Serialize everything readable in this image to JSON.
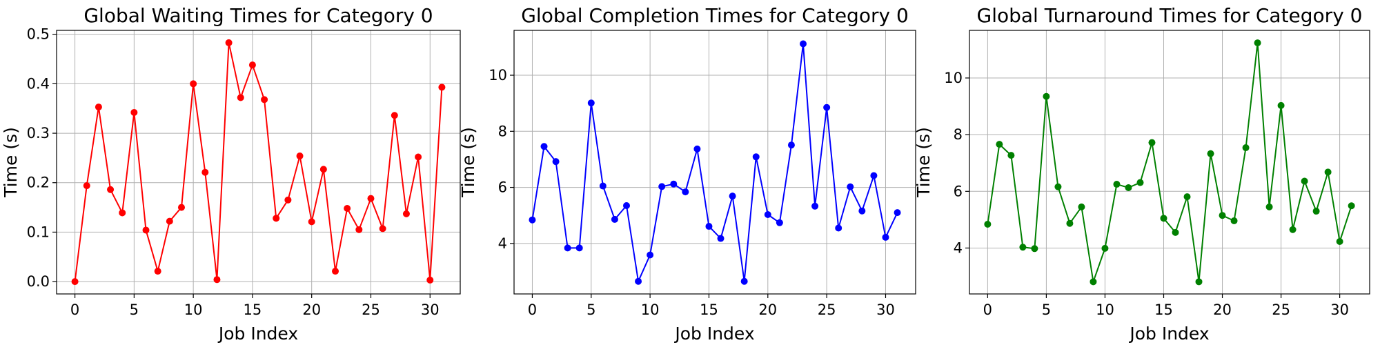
{
  "chart_data": [
    {
      "type": "line",
      "title": "Global Waiting Times for Category 0",
      "xlabel": "Job Index",
      "ylabel": "Time (s)",
      "color": "#ff0000",
      "marker": "circle",
      "grid": true,
      "xlim": [
        -1.55,
        32.55
      ],
      "ylim": [
        -0.025,
        0.508
      ],
      "xticks": [
        0,
        5,
        10,
        15,
        20,
        25,
        30
      ],
      "yticks": [
        0.0,
        0.1,
        0.2,
        0.3,
        0.4,
        0.5
      ],
      "ytick_labels": [
        "0.0",
        "0.1",
        "0.2",
        "0.3",
        "0.4",
        "0.5"
      ],
      "x": [
        0,
        1,
        2,
        3,
        4,
        5,
        6,
        7,
        8,
        9,
        10,
        11,
        12,
        13,
        14,
        15,
        16,
        17,
        18,
        19,
        20,
        21,
        22,
        23,
        24,
        25,
        26,
        27,
        28,
        29,
        30,
        31
      ],
      "y": [
        0.0,
        0.194,
        0.353,
        0.186,
        0.139,
        0.342,
        0.104,
        0.021,
        0.122,
        0.15,
        0.4,
        0.221,
        0.004,
        0.483,
        0.372,
        0.438,
        0.368,
        0.128,
        0.165,
        0.254,
        0.121,
        0.227,
        0.021,
        0.148,
        0.105,
        0.168,
        0.107,
        0.336,
        0.137,
        0.252,
        0.003,
        0.393
      ]
    },
    {
      "type": "line",
      "title": "Global Completion Times for Category 0",
      "xlabel": "Job Index",
      "ylabel": "Time (s)",
      "color": "#0000ff",
      "marker": "circle",
      "grid": true,
      "xlim": [
        -1.55,
        32.55
      ],
      "ylim": [
        2.2,
        11.6
      ],
      "xticks": [
        0,
        5,
        10,
        15,
        20,
        25,
        30
      ],
      "yticks": [
        4,
        6,
        8,
        10
      ],
      "ytick_labels": [
        "4",
        "6",
        "8",
        "10"
      ],
      "x": [
        0,
        1,
        2,
        3,
        4,
        5,
        6,
        7,
        8,
        9,
        10,
        11,
        12,
        13,
        14,
        15,
        16,
        17,
        18,
        19,
        20,
        21,
        22,
        23,
        24,
        25,
        26,
        27,
        28,
        29,
        30,
        31
      ],
      "y": [
        4.84,
        7.46,
        6.92,
        3.84,
        3.84,
        9.01,
        6.05,
        4.86,
        5.35,
        2.65,
        3.59,
        6.03,
        6.12,
        5.84,
        7.37,
        4.61,
        4.18,
        5.69,
        2.65,
        7.09,
        5.03,
        4.74,
        7.51,
        11.12,
        5.33,
        8.85,
        4.55,
        6.02,
        5.16,
        6.42,
        4.22,
        5.1
      ]
    },
    {
      "type": "line",
      "title": "Global Turnaround Times for Category 0",
      "xlabel": "Job Index",
      "ylabel": "Time (s)",
      "color": "#008000",
      "marker": "circle",
      "grid": true,
      "xlim": [
        -1.55,
        32.55
      ],
      "ylim": [
        2.38,
        11.68
      ],
      "xticks": [
        0,
        5,
        10,
        15,
        20,
        25,
        30
      ],
      "yticks": [
        4,
        6,
        8,
        10
      ],
      "ytick_labels": [
        "4",
        "6",
        "8",
        "10"
      ],
      "x": [
        0,
        1,
        2,
        3,
        4,
        5,
        6,
        7,
        8,
        9,
        10,
        11,
        12,
        13,
        14,
        15,
        16,
        17,
        18,
        19,
        20,
        21,
        22,
        23,
        24,
        25,
        26,
        27,
        28,
        29,
        30,
        31
      ],
      "y": [
        4.84,
        7.66,
        7.27,
        4.03,
        3.98,
        9.35,
        6.16,
        4.87,
        5.45,
        2.81,
        3.99,
        6.25,
        6.13,
        6.31,
        7.72,
        5.05,
        4.55,
        5.81,
        2.81,
        7.33,
        5.15,
        4.96,
        7.54,
        11.24,
        5.45,
        9.03,
        4.65,
        6.36,
        5.3,
        6.68,
        4.23,
        5.49
      ]
    }
  ]
}
